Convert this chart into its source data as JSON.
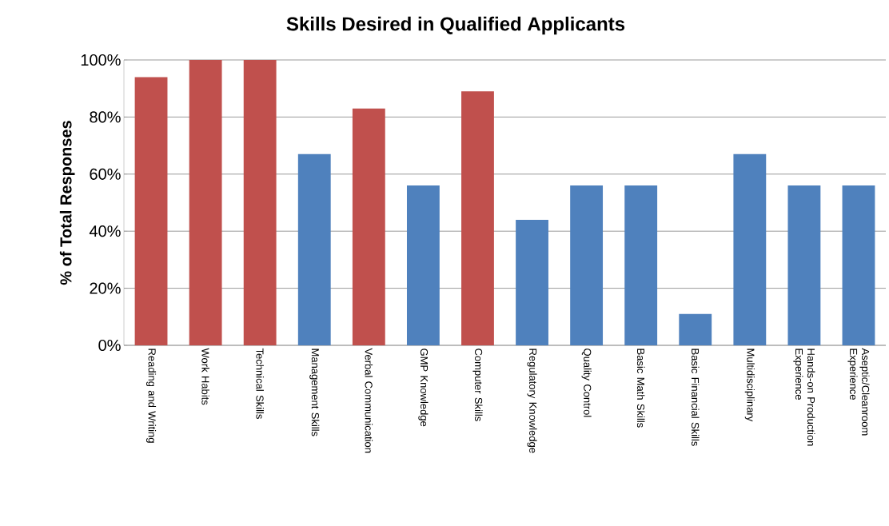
{
  "chart_data": {
    "type": "bar",
    "title": "Skills Desired in Qualified Applicants",
    "ylabel": "% of Total Responses",
    "categories": [
      "Reading and Writing",
      "Work Habits",
      "Technical Skills",
      "Management Skills",
      "Verbal Communication",
      "GMP Knowledge",
      "Computer Skills",
      "Regulatory Knowledge",
      "Quality Control",
      "Basic Math Skills",
      "Basic Financial Skills",
      "Multidisciplinary",
      "Hands-on Production Experience",
      "Aseptic/Cleanroom Experience"
    ],
    "values": [
      94,
      100,
      100,
      67,
      83,
      56,
      89,
      44,
      56,
      56,
      11,
      67,
      56,
      56
    ],
    "colors": [
      "#c0504d",
      "#c0504d",
      "#c0504d",
      "#4f81bd",
      "#c0504d",
      "#4f81bd",
      "#c0504d",
      "#4f81bd",
      "#4f81bd",
      "#4f81bd",
      "#4f81bd",
      "#4f81bd",
      "#4f81bd",
      "#4f81bd"
    ],
    "ylim": [
      0,
      100
    ],
    "yticks": [
      {
        "value": 0,
        "label": "0%"
      },
      {
        "value": 20,
        "label": "20%"
      },
      {
        "value": 40,
        "label": "40%"
      },
      {
        "value": 60,
        "label": "60%"
      },
      {
        "value": 80,
        "label": "80%"
      },
      {
        "value": 100,
        "label": "100%"
      }
    ],
    "grid": "y"
  }
}
